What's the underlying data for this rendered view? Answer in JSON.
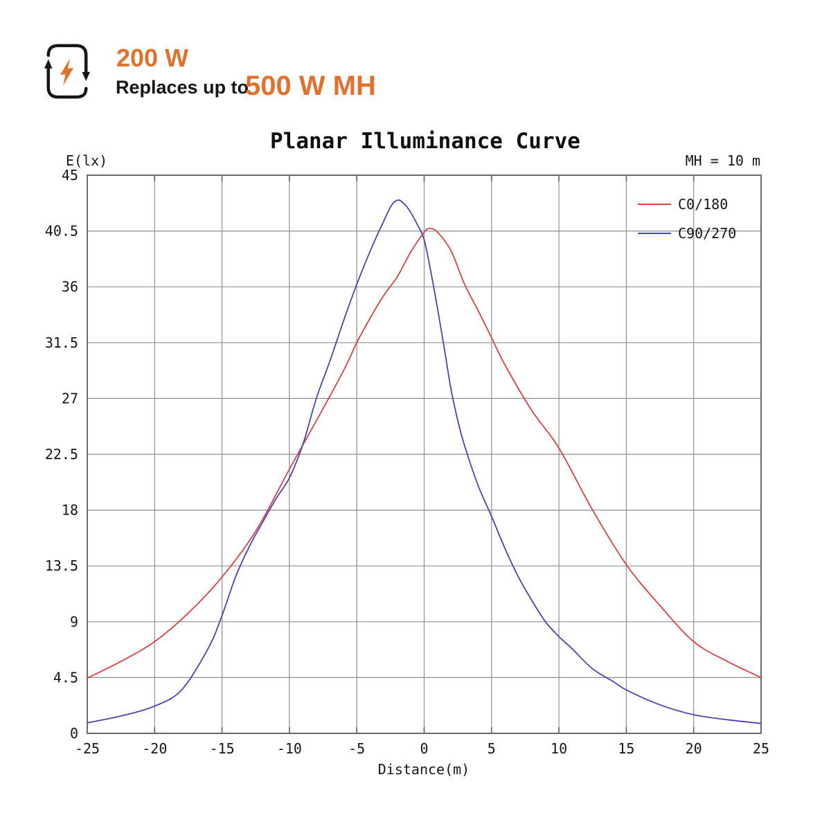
{
  "header": {
    "wattage": "200 W",
    "replaces_label": "Replaces up to",
    "replacement": "500 W MH",
    "accent_color": "#e0722d",
    "icon_color": "#161616",
    "icon": "replace-cycle-lightning-icon"
  },
  "chart_data": {
    "type": "line",
    "title": "Planar Illuminance Curve",
    "ylabel": "E(lx)",
    "xlabel": "Distance(m)",
    "annotation": "MH = 10 m",
    "xlim": [
      -25,
      25
    ],
    "ylim": [
      0,
      45
    ],
    "x_ticks": [
      -25,
      -20,
      -15,
      -10,
      -5,
      0,
      5,
      10,
      15,
      20,
      25
    ],
    "y_ticks": [
      0,
      4.5,
      9,
      13.5,
      18,
      22.5,
      27,
      31.5,
      36,
      40.5,
      45
    ],
    "grid": true,
    "legend_position": "top-right-inside",
    "colors": {
      "grid": "#8f8f8f",
      "axis": "#6b6b6b",
      "text": "#161616"
    },
    "series": [
      {
        "name": "C0/180",
        "color": "#dd4040",
        "points": [
          [
            -25,
            4.45
          ],
          [
            -22.5,
            5.8
          ],
          [
            -20,
            7.4
          ],
          [
            -17.5,
            9.7
          ],
          [
            -15,
            12.6
          ],
          [
            -12.5,
            16.3
          ],
          [
            -10,
            21.3
          ],
          [
            -8,
            25.2
          ],
          [
            -6,
            29.2
          ],
          [
            -5,
            31.5
          ],
          [
            -4,
            33.5
          ],
          [
            -3,
            35.3
          ],
          [
            -2,
            36.8
          ],
          [
            -1,
            38.8
          ],
          [
            0,
            40.4
          ],
          [
            0.4,
            40.7
          ],
          [
            1,
            40.4
          ],
          [
            2,
            38.9
          ],
          [
            3,
            36.2
          ],
          [
            4,
            34.1
          ],
          [
            5,
            31.9
          ],
          [
            6,
            29.7
          ],
          [
            8,
            26.0
          ],
          [
            10,
            23.0
          ],
          [
            12.5,
            18.0
          ],
          [
            15,
            13.6
          ],
          [
            17.5,
            10.3
          ],
          [
            20,
            7.4
          ],
          [
            22.5,
            5.8
          ],
          [
            25,
            4.5
          ]
        ]
      },
      {
        "name": "C90/270",
        "color": "#4545b2",
        "points": [
          [
            -25,
            0.85
          ],
          [
            -22.5,
            1.4
          ],
          [
            -20,
            2.2
          ],
          [
            -18,
            3.5
          ],
          [
            -16,
            6.9
          ],
          [
            -15,
            9.5
          ],
          [
            -14,
            12.6
          ],
          [
            -13,
            15.0
          ],
          [
            -12,
            17.0
          ],
          [
            -11,
            18.9
          ],
          [
            -10,
            20.6
          ],
          [
            -9,
            23.3
          ],
          [
            -8,
            27.0
          ],
          [
            -7,
            30.0
          ],
          [
            -6,
            33.2
          ],
          [
            -5,
            36.2
          ],
          [
            -4,
            38.9
          ],
          [
            -3,
            41.3
          ],
          [
            -2.4,
            42.6
          ],
          [
            -1.9,
            43.0
          ],
          [
            -1.4,
            42.6
          ],
          [
            -1,
            42.0
          ],
          [
            -0.5,
            41.0
          ],
          [
            0,
            39.8
          ],
          [
            0.5,
            37.2
          ],
          [
            1,
            34.2
          ],
          [
            1.5,
            31.0
          ],
          [
            2,
            27.7
          ],
          [
            2.5,
            25.2
          ],
          [
            3,
            23.2
          ],
          [
            4,
            20.0
          ],
          [
            5,
            17.5
          ],
          [
            6,
            14.9
          ],
          [
            7,
            12.6
          ],
          [
            8,
            10.7
          ],
          [
            9,
            9.0
          ],
          [
            10,
            7.8
          ],
          [
            11,
            6.8
          ],
          [
            12.5,
            5.2
          ],
          [
            14,
            4.2
          ],
          [
            15,
            3.5
          ],
          [
            17.5,
            2.3
          ],
          [
            20,
            1.5
          ],
          [
            22.5,
            1.1
          ],
          [
            25,
            0.8
          ]
        ]
      }
    ]
  }
}
